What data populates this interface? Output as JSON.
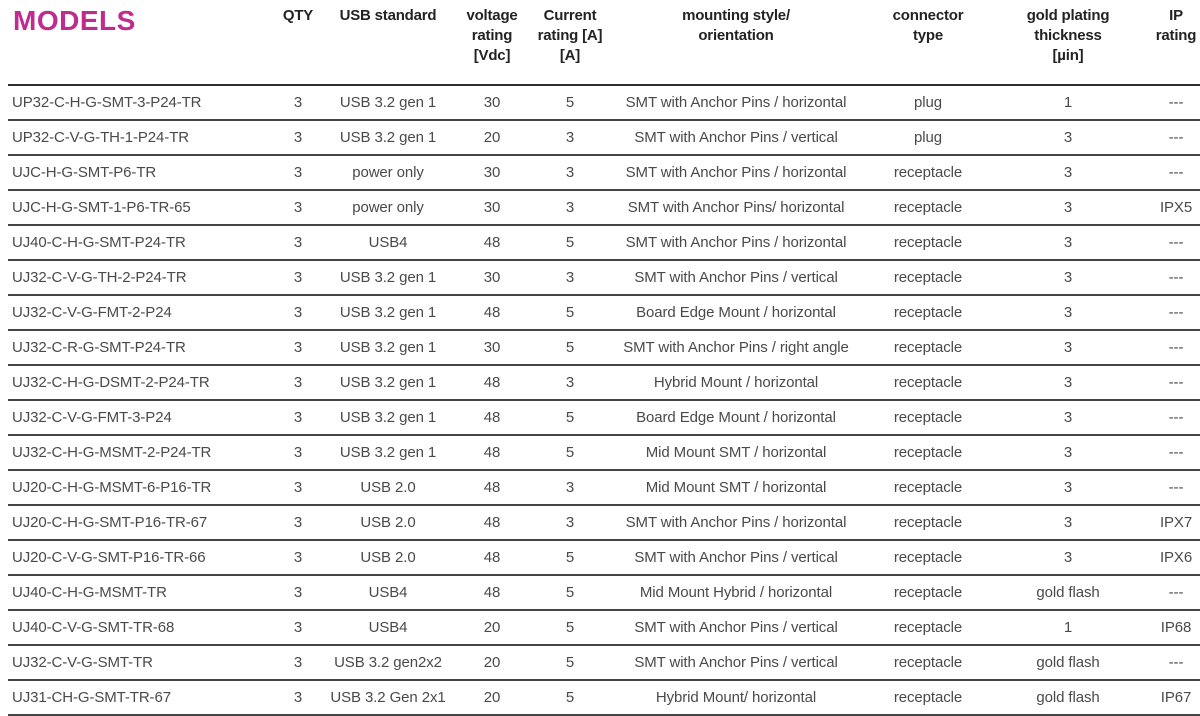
{
  "title": "MODELS",
  "accent_color": "#bf2b8f",
  "text_color": "#4a4a4a",
  "header_text_color": "#232323",
  "table": {
    "columns": [
      {
        "id": "models",
        "header_lines": [
          "MODELS"
        ]
      },
      {
        "id": "qty",
        "header_lines": [
          "QTY"
        ]
      },
      {
        "id": "usb",
        "header_lines": [
          "USB standard"
        ]
      },
      {
        "id": "voltage",
        "header_lines": [
          "voltage",
          "rating",
          "[Vdc]"
        ]
      },
      {
        "id": "current",
        "header_lines": [
          "Current",
          "rating [A]",
          "[A]"
        ]
      },
      {
        "id": "mounting",
        "header_lines": [
          "mounting style/",
          "orientation"
        ]
      },
      {
        "id": "connector",
        "header_lines": [
          "connector",
          "type"
        ]
      },
      {
        "id": "gold",
        "header_lines": [
          "gold plating",
          "thickness",
          "[µin]"
        ]
      },
      {
        "id": "ip",
        "header_lines": [
          "IP",
          "rating"
        ]
      }
    ],
    "rows": [
      [
        "UP32-C-H-G-SMT-3-P24-TR",
        "3",
        "USB 3.2 gen 1",
        "30",
        "5",
        "SMT with Anchor Pins / horizontal",
        "plug",
        "1",
        "---"
      ],
      [
        "UP32-C-V-G-TH-1-P24-TR",
        "3",
        "USB 3.2 gen 1",
        "20",
        "3",
        "SMT with Anchor Pins / vertical",
        "plug",
        "3",
        "---"
      ],
      [
        "UJC-H-G-SMT-P6-TR",
        "3",
        "power only",
        "30",
        "3",
        "SMT with Anchor Pins / horizontal",
        "receptacle",
        "3",
        "---"
      ],
      [
        "UJC-H-G-SMT-1-P6-TR-65",
        "3",
        "power only",
        "30",
        "3",
        "SMT with Anchor Pins/ horizontal",
        "receptacle",
        "3",
        "IPX5"
      ],
      [
        "UJ40-C-H-G-SMT-P24-TR",
        "3",
        "USB4",
        "48",
        "5",
        "SMT with Anchor Pins / horizontal",
        "receptacle",
        "3",
        "---"
      ],
      [
        "UJ32-C-V-G-TH-2-P24-TR",
        "3",
        "USB 3.2 gen 1",
        "30",
        "3",
        "SMT with Anchor Pins / vertical",
        "receptacle",
        "3",
        "---"
      ],
      [
        "UJ32-C-V-G-FMT-2-P24",
        "3",
        "USB 3.2 gen 1",
        "48",
        "5",
        "Board Edge Mount / horizontal",
        "receptacle",
        "3",
        "---"
      ],
      [
        "UJ32-C-R-G-SMT-P24-TR",
        "3",
        "USB 3.2 gen 1",
        "30",
        "5",
        "SMT with Anchor Pins / right angle",
        "receptacle",
        "3",
        "---"
      ],
      [
        "UJ32-C-H-G-DSMT-2-P24-TR",
        "3",
        "USB 3.2 gen 1",
        "48",
        "3",
        "Hybrid Mount / horizontal",
        "receptacle",
        "3",
        "---"
      ],
      [
        "UJ32-C-V-G-FMT-3-P24",
        "3",
        "USB 3.2 gen 1",
        "48",
        "5",
        "Board Edge Mount / horizontal",
        "receptacle",
        "3",
        "---"
      ],
      [
        "UJ32-C-H-G-MSMT-2-P24-TR",
        "3",
        "USB 3.2 gen 1",
        "48",
        "5",
        "Mid Mount SMT / horizontal",
        "receptacle",
        "3",
        "---"
      ],
      [
        "UJ20-C-H-G-MSMT-6-P16-TR",
        "3",
        "USB 2.0",
        "48",
        "3",
        "Mid Mount SMT / horizontal",
        "receptacle",
        "3",
        "---"
      ],
      [
        "UJ20-C-H-G-SMT-P16-TR-67",
        "3",
        "USB 2.0",
        "48",
        "3",
        "SMT with Anchor Pins / horizontal",
        "receptacle",
        "3",
        "IPX7"
      ],
      [
        "UJ20-C-V-G-SMT-P16-TR-66",
        "3",
        "USB 2.0",
        "48",
        "5",
        "SMT with Anchor Pins / vertical",
        "receptacle",
        "3",
        "IPX6"
      ],
      [
        "UJ40-C-H-G-MSMT-TR",
        "3",
        "USB4",
        "48",
        "5",
        "Mid Mount Hybrid / horizontal",
        "receptacle",
        "gold flash",
        "---"
      ],
      [
        "UJ40-C-V-G-SMT-TR-68",
        "3",
        "USB4",
        "20",
        "5",
        "SMT with Anchor Pins / vertical",
        "receptacle",
        "1",
        "IP68"
      ],
      [
        "UJ32-C-V-G-SMT-TR",
        "3",
        "USB 3.2 gen2x2",
        "20",
        "5",
        "SMT with Anchor Pins / vertical",
        "receptacle",
        "gold flash",
        "---"
      ],
      [
        "UJ31-CH-G-SMT-TR-67",
        "3",
        "USB 3.2 Gen 2x1",
        "20",
        "5",
        "Hybrid Mount/ horizontal",
        "receptacle",
        "gold flash",
        "IP67"
      ]
    ]
  }
}
